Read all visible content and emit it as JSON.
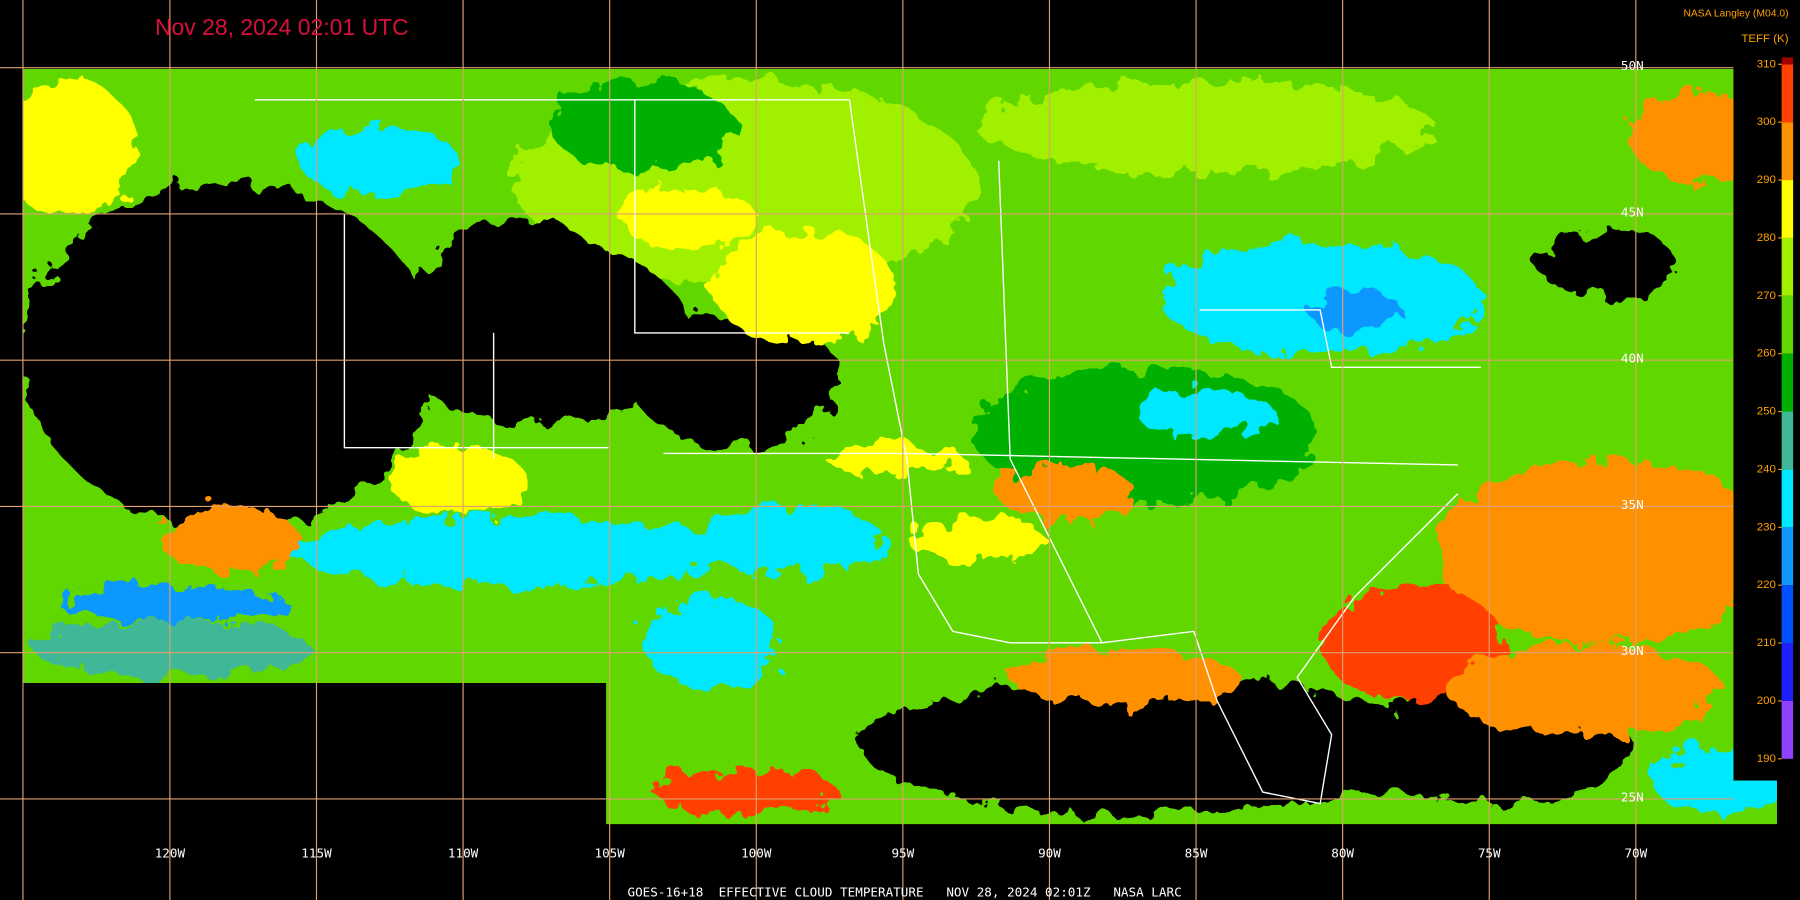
{
  "title": "Nov 28, 2024 02:01 UTC",
  "source": "NASA Langley (M04.0)",
  "footer": "GOES-16+18  EFFECTIVE CLOUD TEMPERATURE   NOV 28, 2024 02:01Z   NASA LARC",
  "colorbar": {
    "label": "TEFF (K)",
    "ticks": [
      190,
      200,
      210,
      220,
      230,
      240,
      250,
      260,
      270,
      280,
      290,
      300,
      310
    ],
    "colors": [
      "#9040ff",
      "#2020ff",
      "#0050ff",
      "#1098ff",
      "#00e8ff",
      "#40b898",
      "#00b000",
      "#60d800",
      "#a0f000",
      "#ffff00",
      "#ff9000",
      "#ff4000"
    ],
    "top_color": "#a00000"
  },
  "longitude_labels": [
    "120W",
    "115W",
    "110W",
    "105W",
    "100W",
    "95W",
    "90W",
    "85W",
    "80W",
    "75W",
    "70W"
  ],
  "latitude_labels": [
    "50N",
    "45N",
    "40N",
    "35N",
    "30N",
    "25N"
  ]
}
